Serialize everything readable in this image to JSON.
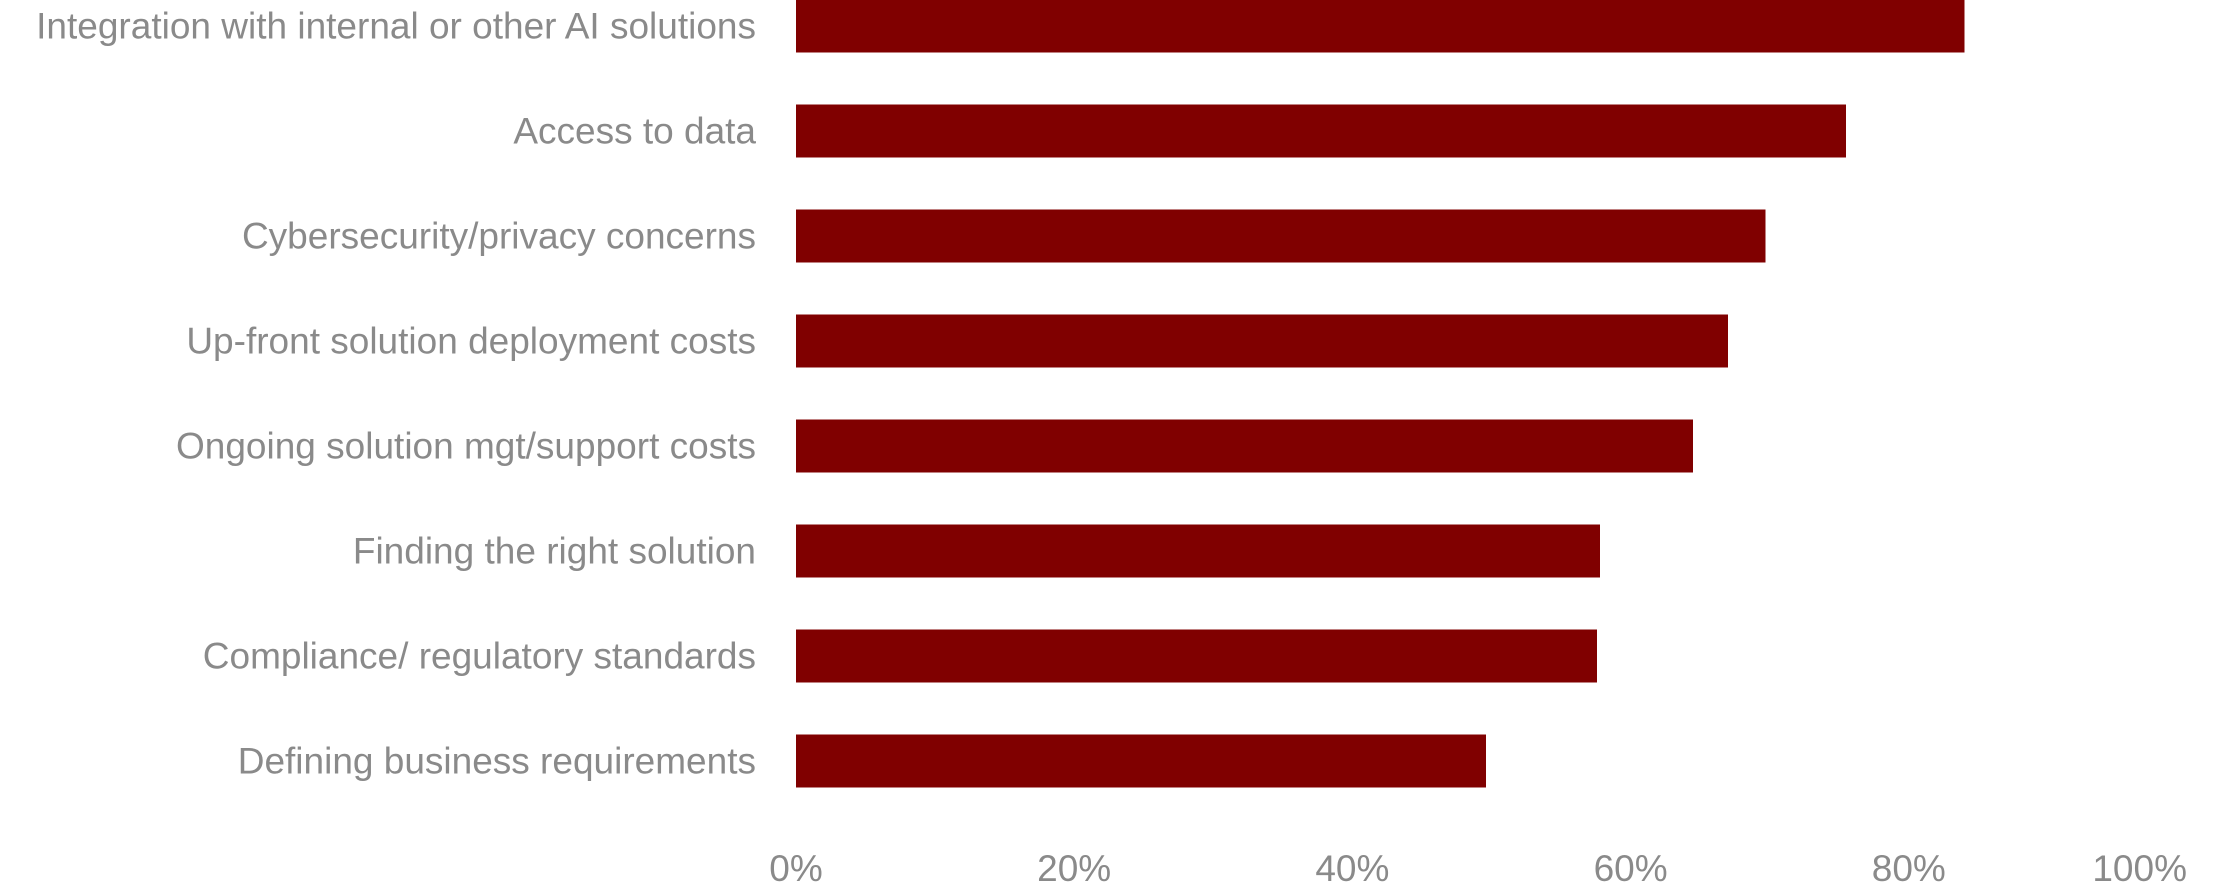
{
  "chart_data": {
    "type": "bar",
    "orientation": "horizontal",
    "title": "",
    "xlabel": "",
    "ylabel": "",
    "xlim": [
      0,
      100
    ],
    "unit": "%",
    "grid": false,
    "legend": "none",
    "bar_color": "#800000",
    "label_color": "#8a8a8a",
    "categories": [
      "Integration with internal or other AI solutions",
      "Access to data",
      "Cybersecurity/privacy concerns",
      "Up-front solution deployment costs",
      "Ongoing solution mgt/support costs",
      "Finding the right solution",
      "Compliance/ regulatory standards",
      "Defining business requirements"
    ],
    "values": [
      84,
      75.5,
      69.7,
      67,
      64.5,
      57.8,
      57.6,
      49.6
    ],
    "x_ticks": [
      "0%",
      "20%",
      "40%",
      "60%",
      "80%",
      "100%"
    ],
    "x_tick_values": [
      0,
      20,
      40,
      60,
      80,
      100
    ]
  }
}
